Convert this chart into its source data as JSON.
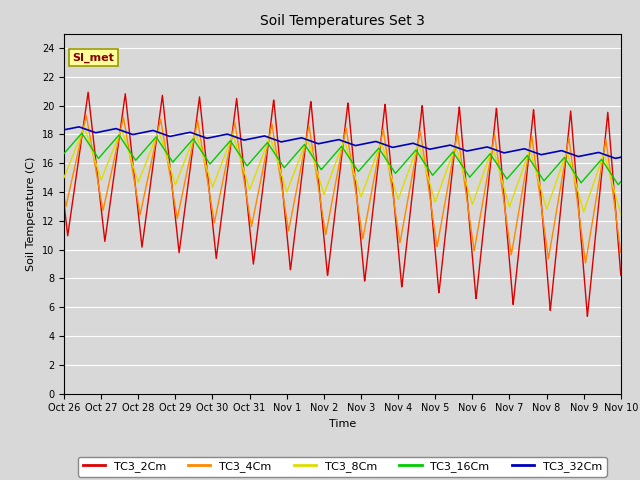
{
  "title": "Soil Temperatures Set 3",
  "xlabel": "Time",
  "ylabel": "Soil Temperature (C)",
  "ylim": [
    0,
    25
  ],
  "yticks": [
    0,
    2,
    4,
    6,
    8,
    10,
    12,
    14,
    16,
    18,
    20,
    22,
    24
  ],
  "num_days": 15,
  "series_colors": {
    "TC3_2Cm": "#dd0000",
    "TC3_4Cm": "#ff8800",
    "TC3_8Cm": "#dddd00",
    "TC3_16Cm": "#00cc00",
    "TC3_32Cm": "#0000bb"
  },
  "legend_labels": [
    "TC3_2Cm",
    "TC3_4Cm",
    "TC3_8Cm",
    "TC3_16Cm",
    "TC3_32Cm"
  ],
  "x_tick_labels": [
    "Oct 26",
    "Oct 27",
    "Oct 28",
    "Oct 29",
    "Oct 30",
    "Oct 31",
    "Nov 1",
    "Nov 2",
    "Nov 3",
    "Nov 4",
    "Nov 5",
    "Nov 6",
    "Nov 7",
    "Nov 8",
    "Nov 9",
    "Nov 10"
  ],
  "background_color": "#d8d8d8",
  "plot_bg_color": "#d8d8d8",
  "annotation_text": "SI_met",
  "annotation_box_color": "#ffff99",
  "annotation_box_edge": "#999900",
  "annotation_text_color": "#880000"
}
